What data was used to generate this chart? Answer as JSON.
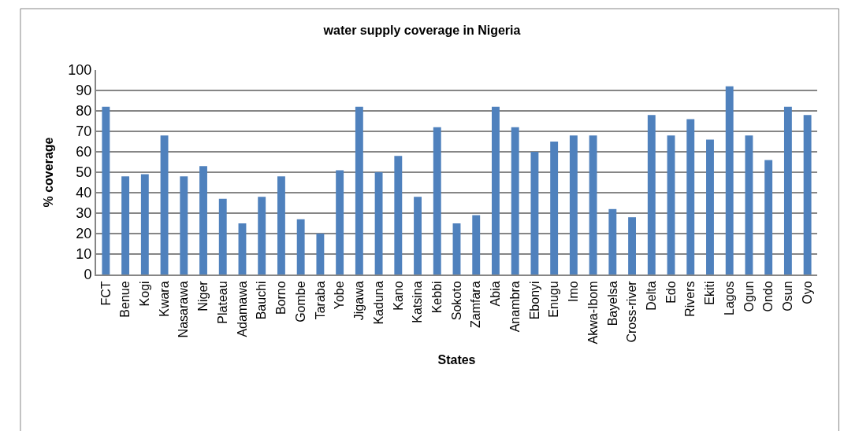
{
  "chart_data": {
    "type": "bar",
    "title": "water supply coverage in Nigeria",
    "xlabel": "States",
    "ylabel": "% coverage",
    "categories": [
      "FCT",
      "Benue",
      "Kogi",
      "Kwara",
      "Nasarawa",
      "Niger",
      "Plateau",
      "Adamawa",
      "Bauchi",
      "Borno",
      "Gombe",
      "Taraba",
      "Yobe",
      "Jigawa",
      "Kaduna",
      "Kano",
      "Katsina",
      "Kebbi",
      "Sokoto",
      "Zamfara",
      "Abia",
      "Anambra",
      "Ebonyi",
      "Enugu",
      "Imo",
      "Akwa-Ibom",
      "Bayelsa",
      "Cross-river",
      "Delta",
      "Edo",
      "Rivers",
      "Ekiti",
      "Lagos",
      "Ogun",
      "Ondo",
      "Osun",
      "Oyo"
    ],
    "values": [
      82,
      48,
      49,
      68,
      48,
      53,
      37,
      25,
      38,
      48,
      27,
      20,
      51,
      82,
      50,
      58,
      38,
      72,
      25,
      29,
      82,
      72,
      60,
      65,
      68,
      68,
      32,
      28,
      78,
      68,
      76,
      66,
      92,
      68,
      56,
      82,
      78
    ],
    "color": "#4f81bd",
    "ylim": [
      0,
      100
    ],
    "yticks": [
      0,
      10,
      20,
      30,
      40,
      50,
      60,
      70,
      80,
      90,
      100
    ],
    "grid": "y"
  }
}
